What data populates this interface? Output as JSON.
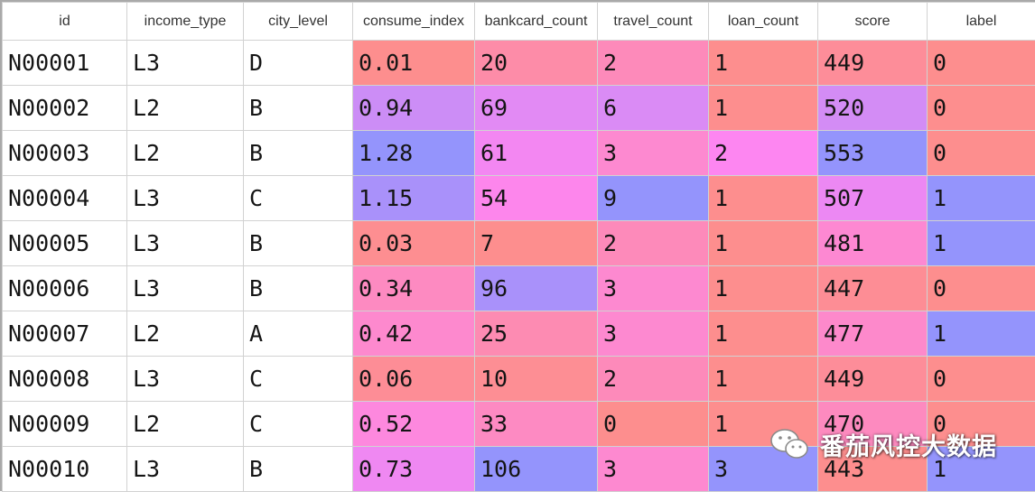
{
  "columns": [
    "id",
    "income_type",
    "city_level",
    "consume_index",
    "bankcard_count",
    "travel_count",
    "loan_count",
    "score",
    "label"
  ],
  "rows": [
    [
      "N00001",
      "L3",
      "D",
      "0.01",
      "20",
      "2",
      "1",
      "449",
      "0"
    ],
    [
      "N00002",
      "L2",
      "B",
      "0.94",
      "69",
      "6",
      "1",
      "520",
      "0"
    ],
    [
      "N00003",
      "L2",
      "B",
      "1.28",
      "61",
      "3",
      "2",
      "553",
      "0"
    ],
    [
      "N00004",
      "L3",
      "C",
      "1.15",
      "54",
      "9",
      "1",
      "507",
      "1"
    ],
    [
      "N00005",
      "L3",
      "B",
      "0.03",
      "7",
      "2",
      "1",
      "481",
      "1"
    ],
    [
      "N00006",
      "L3",
      "B",
      "0.34",
      "96",
      "3",
      "1",
      "447",
      "0"
    ],
    [
      "N00007",
      "L2",
      "A",
      "0.42",
      "25",
      "3",
      "1",
      "477",
      "1"
    ],
    [
      "N00008",
      "L3",
      "C",
      "0.06",
      "10",
      "2",
      "1",
      "449",
      "0"
    ],
    [
      "N00009",
      "L2",
      "C",
      "0.52",
      "33",
      "0",
      "1",
      "470",
      "0"
    ],
    [
      "N00010",
      "L3",
      "B",
      "0.73",
      "106",
      "3",
      "3",
      "443",
      "1"
    ]
  ],
  "gradient_colors": {
    "low": "#fd8e8e",
    "mid": "#fd86f1",
    "high": "#9494fc"
  },
  "watermark": {
    "icon": "wechat-icon",
    "text": "番茄风控大数据"
  }
}
